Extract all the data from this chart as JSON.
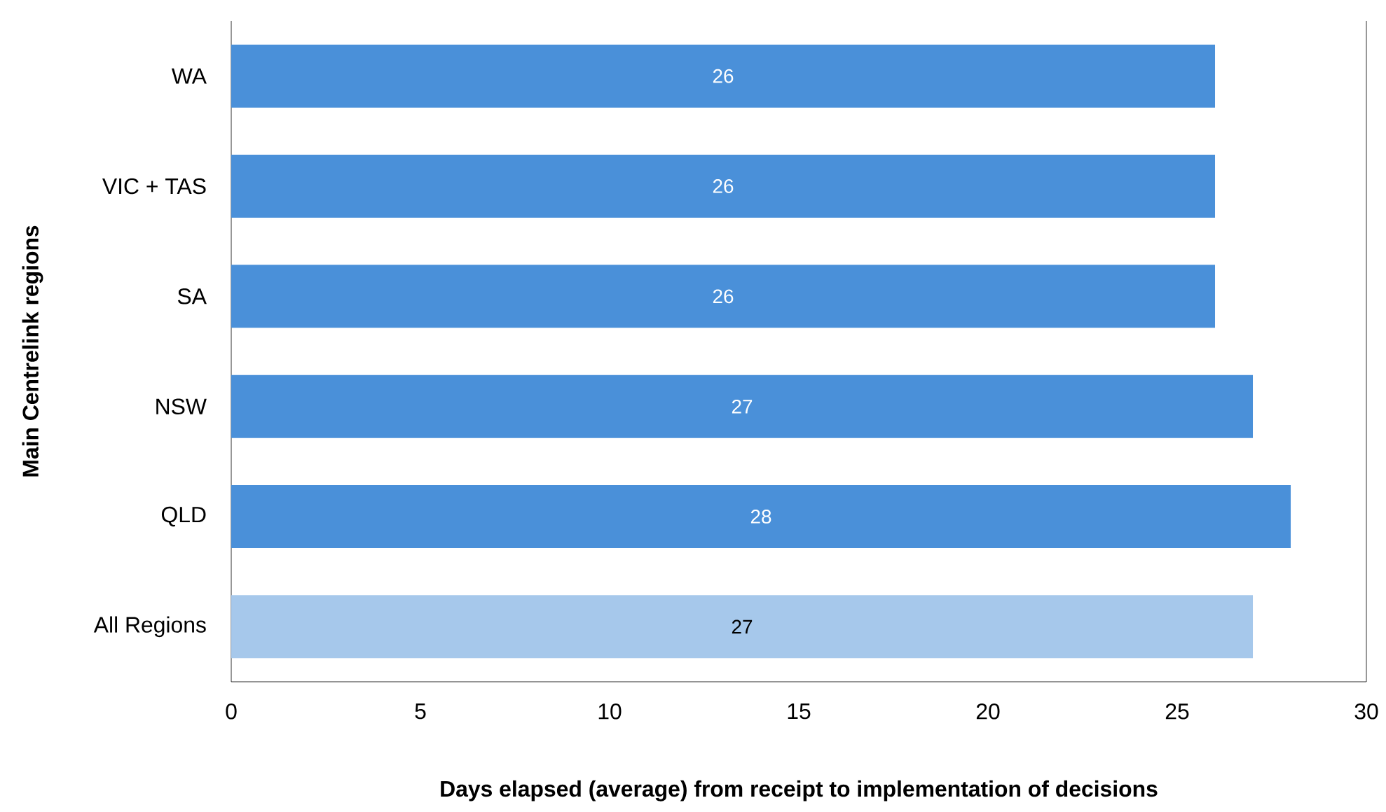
{
  "chart_data": {
    "type": "bar",
    "orientation": "horizontal",
    "xlabel": "Days elapsed (average) from receipt to implementation of decisions",
    "ylabel": "Main Centrelink regions",
    "categories": [
      "WA",
      "VIC + TAS",
      "SA",
      "NSW",
      "QLD",
      "All Regions"
    ],
    "values": [
      26,
      26,
      26,
      27,
      28,
      27
    ],
    "colors": [
      "#4a90d9",
      "#4a90d9",
      "#4a90d9",
      "#4a90d9",
      "#4a90d9",
      "#a6c8eb"
    ],
    "xlim": [
      0,
      30
    ],
    "xticks": [
      0,
      5,
      10,
      15,
      20,
      25,
      30
    ],
    "data_labels": true,
    "grid": false
  }
}
